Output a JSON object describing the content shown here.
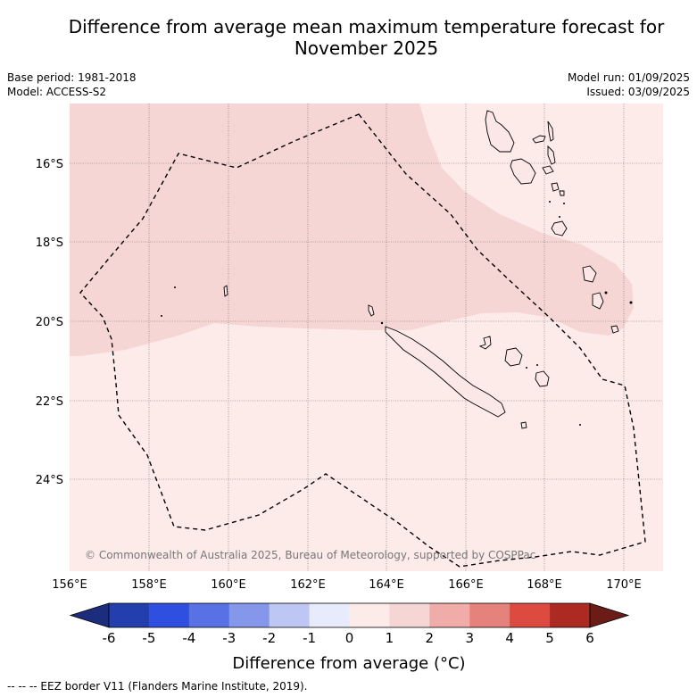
{
  "header": {
    "title_line1": "Difference from average mean maximum temperature forecast for",
    "title_line2": "November 2025",
    "base_period": "Base period: 1981-2018",
    "model": "Model: ACCESS-S2",
    "model_run": "Model run: 01/09/2025",
    "issued": "Issued: 03/09/2025"
  },
  "map": {
    "lat_labels": [
      "16°S",
      "18°S",
      "20°S",
      "22°S",
      "24°S"
    ],
    "lon_labels": [
      "156°E",
      "158°E",
      "160°E",
      "162°E",
      "164°E",
      "166°E",
      "168°E",
      "170°E"
    ],
    "copyright": "© Commonwealth of Australia 2025, Bureau of Meteorology, supported by COSPPac",
    "colors": {
      "anomaly_0_1": "#fdebe9",
      "anomaly_1_2": "#f6d6d5"
    }
  },
  "legend": {
    "tick_labels": [
      "-6",
      "-5",
      "-4",
      "-3",
      "-2",
      "-1",
      "0",
      "1",
      "2",
      "3",
      "4",
      "5",
      "6"
    ],
    "colors": [
      "#1c2d7d",
      "#233fae",
      "#2e4fe0",
      "#5872e6",
      "#8597eb",
      "#bec6f3",
      "#e7ebfb",
      "#fdebe9",
      "#f6d6d5",
      "#efaca8",
      "#e5827b",
      "#dd4a3f",
      "#ad2a22",
      "#6b1c16"
    ],
    "label": "Difference from average (°C)"
  },
  "footer": {
    "eez_note": "--  --  -- EEZ border V11 (Flanders Marine Institute, 2019)."
  }
}
